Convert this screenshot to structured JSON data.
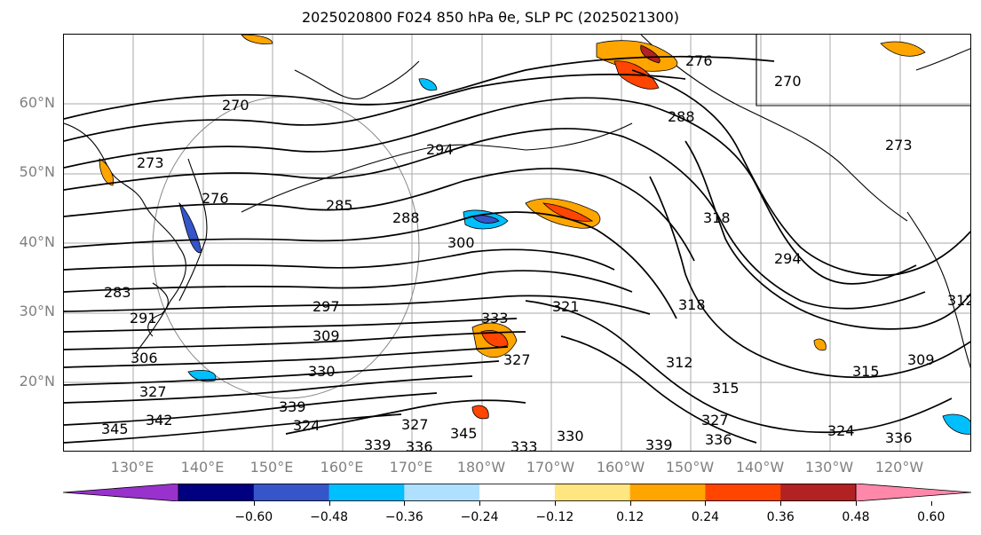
{
  "title": "2025020800 F024 850 hPa θe, SLP PC (2025021300)",
  "lat_labels": [
    "60°N",
    "50°N",
    "40°N",
    "30°N",
    "20°N"
  ],
  "lon_labels": [
    "130°E",
    "140°E",
    "150°E",
    "160°E",
    "170°E",
    "180°W",
    "170°W",
    "160°W",
    "150°W",
    "140°W",
    "130°W",
    "120°W"
  ],
  "contour_labels": [
    "270",
    "273",
    "276",
    "285",
    "288",
    "294",
    "276",
    "270",
    "273",
    "288",
    "291",
    "283",
    "297",
    "300",
    "306",
    "309",
    "327",
    "330",
    "339",
    "342",
    "345",
    "333",
    "321",
    "327",
    "318",
    "312",
    "315",
    "294",
    "309",
    "315",
    "312",
    "318",
    "336",
    "339",
    "327",
    "324",
    "336",
    "330",
    "333",
    "345",
    "327",
    "324",
    "339",
    "336"
  ],
  "colorbar": {
    "colors": [
      "#9932cc",
      "#000080",
      "#3555c8",
      "#00bfff",
      "#b0e0ff",
      "#ffffff",
      "#ffe680",
      "#ffa500",
      "#ff4500",
      "#b22222",
      "#ff88aa"
    ],
    "ticks": [
      "−0.60",
      "−0.48",
      "−0.36",
      "−0.24",
      "−0.12",
      "0.12",
      "0.24",
      "0.36",
      "0.48",
      "0.60"
    ]
  }
}
